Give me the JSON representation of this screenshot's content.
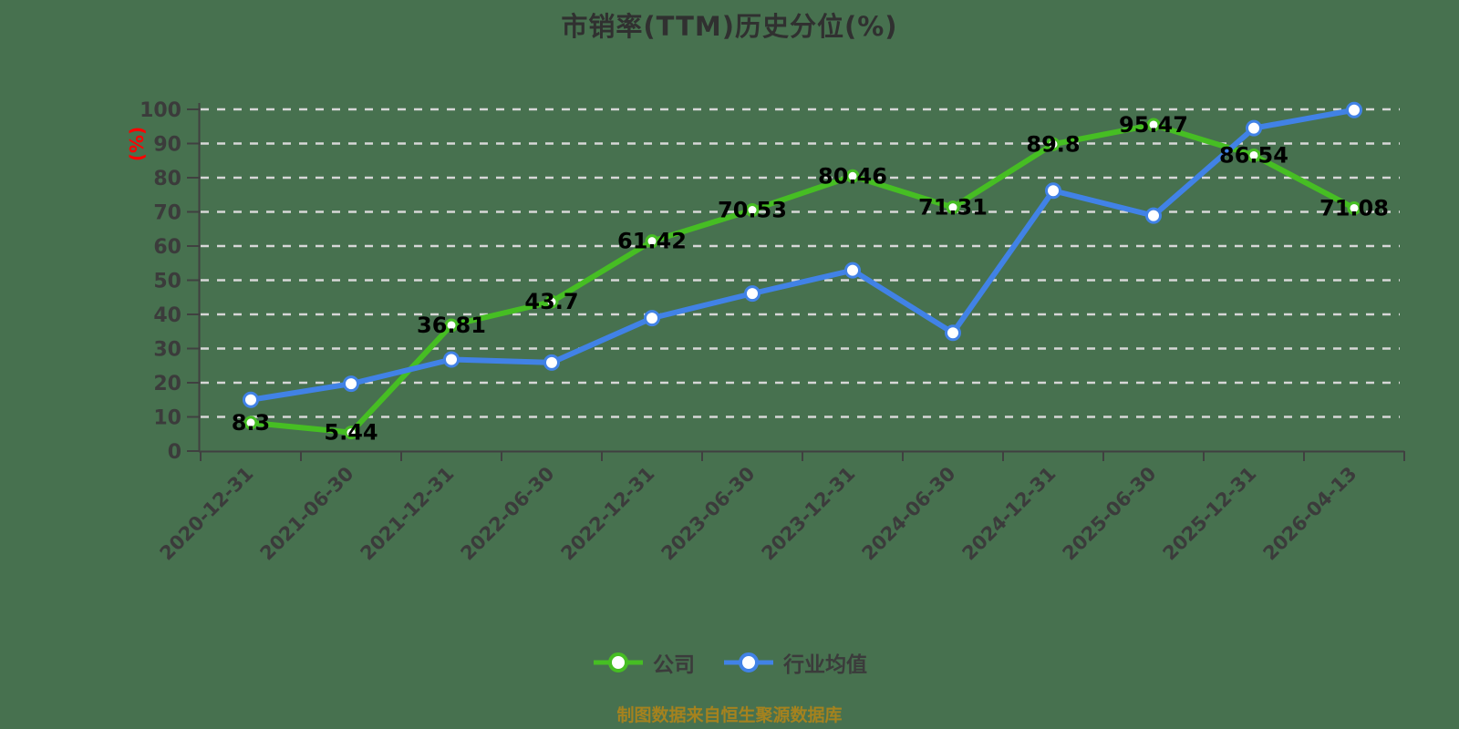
{
  "page": {
    "background": "#47714f"
  },
  "colors": {
    "company_green": "#46be23",
    "industry_blue": "#4182e6",
    "grid_line": "#d7d7d7",
    "axis_line": "#404040",
    "tick_label": "#3b3b3b",
    "y_axis_name_red": "#ff0000",
    "data_label": "#000000",
    "title_color": "#303030",
    "source_note_gold": "#a5821e"
  },
  "chart_data": {
    "type": "line",
    "title": "市销率(TTM)历史分位(%)",
    "xlabel": "",
    "ylabel": "(%)",
    "ylim": [
      0,
      100
    ],
    "y_tick_interval": 10,
    "grid": "horizontal dashed gridlines every 10",
    "legend_position": "bottom",
    "categories": [
      "2020-12-31",
      "2021-06-30",
      "2021-12-31",
      "2022-06-30",
      "2022-12-31",
      "2023-06-30",
      "2023-12-31",
      "2024-06-30",
      "2024-12-31",
      "2025-06-30",
      "2025-12-31",
      "2026-04-13"
    ],
    "series": [
      {
        "name": "公司",
        "color": "#46be23",
        "marker": "hollow-circle",
        "labels_shown": true,
        "values": [
          8.3,
          5.44,
          36.81,
          43.7,
          61.42,
          70.53,
          80.46,
          71.31,
          89.8,
          95.47,
          86.54,
          71.08
        ]
      },
      {
        "name": "行业均值",
        "color": "#4182e6",
        "marker": "hollow-circle",
        "labels_shown": false,
        "values": [
          15,
          19.7,
          26.8,
          25.9,
          38.9,
          46.1,
          52.9,
          34.6,
          76.2,
          68.9,
          94.5,
          99.8
        ]
      }
    ],
    "source_note": "制图数据来自恒生聚源数据库"
  },
  "legend": {
    "items": [
      {
        "label": "公司"
      },
      {
        "label": "行业均值"
      }
    ]
  }
}
